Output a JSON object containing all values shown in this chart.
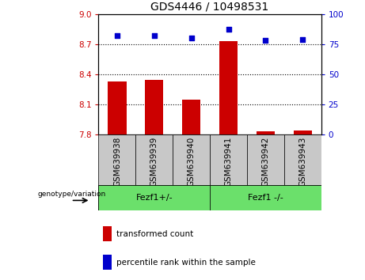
{
  "title": "GDS4446 / 10498531",
  "categories": [
    "GSM639938",
    "GSM639939",
    "GSM639940",
    "GSM639941",
    "GSM639942",
    "GSM639943"
  ],
  "bar_values": [
    8.33,
    8.34,
    8.15,
    8.73,
    7.83,
    7.84
  ],
  "scatter_values": [
    82,
    82,
    80,
    87,
    78,
    79
  ],
  "bar_color": "#cc0000",
  "scatter_color": "#0000cc",
  "ylim_left": [
    7.8,
    9.0
  ],
  "ylim_right": [
    0,
    100
  ],
  "yticks_left": [
    7.8,
    8.1,
    8.4,
    8.7,
    9.0
  ],
  "yticks_right": [
    0,
    25,
    50,
    75,
    100
  ],
  "hlines": [
    8.7,
    8.4,
    8.1
  ],
  "group1_label": "Fezf1+/-",
  "group2_label": "Fezf1 -/-",
  "group1_indices": [
    0,
    1,
    2
  ],
  "group2_indices": [
    3,
    4,
    5
  ],
  "genotype_label": "genotype/variation",
  "legend_bar_label": "transformed count",
  "legend_scatter_label": "percentile rank within the sample",
  "bar_width": 0.5,
  "group_bg_color": "#c8c8c8",
  "green_fill": "#6be06b",
  "title_fontsize": 10,
  "tick_fontsize": 7.5,
  "label_fontsize": 7.5
}
